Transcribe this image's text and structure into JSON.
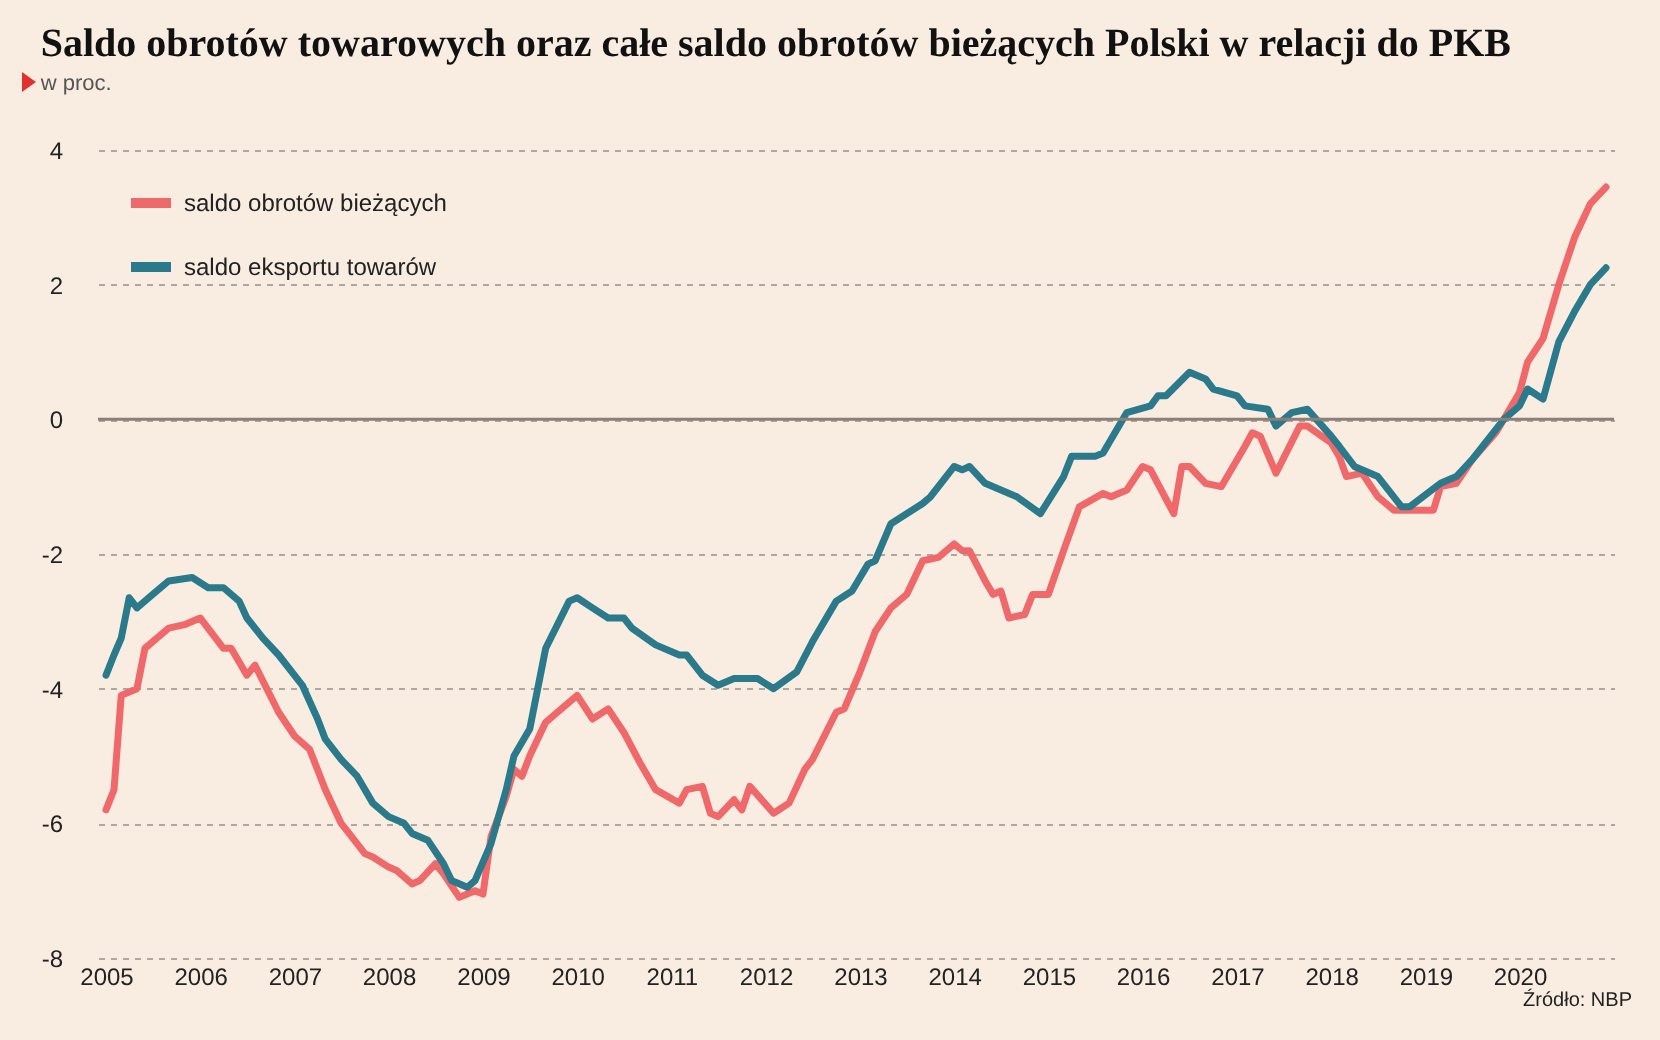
{
  "chart_data": {
    "type": "line",
    "title": "Saldo obrotów towarowych oraz całe saldo obrotów bieżących Polski w relacji do PKB",
    "subtitle": "w proc.",
    "annotations": [
      "Źródło: NBP"
    ],
    "xlim": [
      "2004-12",
      "2021-01"
    ],
    "xticks": [
      "2005",
      "2006",
      "2007",
      "2008",
      "2009",
      "2010",
      "2011",
      "2012",
      "2013",
      "2014",
      "2015",
      "2016",
      "2017",
      "2018",
      "2019",
      "2020"
    ],
    "ylim": [
      -8,
      4
    ],
    "yticks": [
      -8,
      -6,
      -4,
      -2,
      0,
      2,
      4
    ],
    "grid": "y",
    "legend": "top left",
    "ref_lines": [
      {
        "axis": "y",
        "value": 0,
        "color": "#8c7f78"
      }
    ],
    "series": [
      {
        "name": "saldo obrotów bieżących",
        "color": "#f0696a",
        "x": [
          "2005-01",
          "2005-02",
          "2005-03",
          "2005-05",
          "2005-06",
          "2005-09",
          "2005-11",
          "2006-01",
          "2006-04",
          "2006-05",
          "2006-07",
          "2006-08",
          "2006-11",
          "2007-01",
          "2007-03",
          "2007-05",
          "2007-07",
          "2007-08",
          "2007-10",
          "2007-11",
          "2008-01",
          "2008-02",
          "2008-04",
          "2008-05",
          "2008-07",
          "2008-08",
          "2008-10",
          "2008-12",
          "2009-01",
          "2009-02",
          "2009-04",
          "2009-05",
          "2009-06",
          "2009-07",
          "2009-09",
          "2009-10",
          "2010-01",
          "2010-03",
          "2010-05",
          "2010-07",
          "2010-09",
          "2010-11",
          "2011-02",
          "2011-03",
          "2011-05",
          "2011-06",
          "2011-07",
          "2011-09",
          "2011-10",
          "2011-11",
          "2012-02",
          "2012-04",
          "2012-06",
          "2012-07",
          "2012-10",
          "2012-11",
          "2013-01",
          "2013-03",
          "2013-05",
          "2013-07",
          "2013-09",
          "2013-11",
          "2014-01",
          "2014-02",
          "2014-03",
          "2014-05",
          "2014-06",
          "2014-07",
          "2014-08",
          "2014-10",
          "2014-11",
          "2015-01",
          "2015-03",
          "2015-05",
          "2015-08",
          "2015-09",
          "2015-11",
          "2016-01",
          "2016-02",
          "2016-05",
          "2016-06",
          "2016-07",
          "2016-09",
          "2016-11",
          "2017-02",
          "2017-03",
          "2017-04",
          "2017-06",
          "2017-09",
          "2017-10",
          "2018-01",
          "2018-02",
          "2018-03",
          "2018-05",
          "2018-07",
          "2018-09",
          "2019-02",
          "2019-03",
          "2019-05",
          "2019-07",
          "2019-10",
          "2020-01",
          "2020-02",
          "2020-04",
          "2020-06",
          "2020-08",
          "2020-10",
          "2020-12"
        ],
        "values": [
          -5.8,
          -5.5,
          -4.1,
          -4.0,
          -3.4,
          -3.1,
          -3.05,
          -2.95,
          -3.4,
          -3.4,
          -3.8,
          -3.65,
          -4.35,
          -4.7,
          -4.9,
          -5.5,
          -6.0,
          -6.15,
          -6.45,
          -6.5,
          -6.65,
          -6.7,
          -6.9,
          -6.85,
          -6.6,
          -6.75,
          -7.1,
          -7.0,
          -7.05,
          -6.2,
          -5.6,
          -5.2,
          -5.3,
          -5.0,
          -4.5,
          -4.4,
          -4.1,
          -4.45,
          -4.3,
          -4.65,
          -5.1,
          -5.5,
          -5.7,
          -5.5,
          -5.45,
          -5.85,
          -5.9,
          -5.65,
          -5.8,
          -5.45,
          -5.85,
          -5.7,
          -5.2,
          -5.05,
          -4.35,
          -4.3,
          -3.75,
          -3.15,
          -2.8,
          -2.6,
          -2.1,
          -2.05,
          -1.85,
          -1.95,
          -1.95,
          -2.4,
          -2.6,
          -2.55,
          -2.95,
          -2.9,
          -2.6,
          -2.6,
          -1.95,
          -1.3,
          -1.1,
          -1.15,
          -1.05,
          -0.7,
          -0.75,
          -1.4,
          -0.7,
          -0.7,
          -0.95,
          -1.0,
          -0.4,
          -0.2,
          -0.25,
          -0.8,
          -0.1,
          -0.1,
          -0.35,
          -0.55,
          -0.85,
          -0.8,
          -1.15,
          -1.35,
          -1.35,
          -1.0,
          -0.95,
          -0.6,
          -0.2,
          0.4,
          0.85,
          1.2,
          2.0,
          2.7,
          3.2,
          3.45
        ]
      },
      {
        "name": "saldo eksportu towarów",
        "color": "#2a7a8c",
        "x": [
          "2005-01",
          "2005-02",
          "2005-03",
          "2005-04",
          "2005-05",
          "2005-07",
          "2005-09",
          "2005-12",
          "2006-02",
          "2006-04",
          "2006-06",
          "2006-07",
          "2006-09",
          "2006-11",
          "2007-02",
          "2007-04",
          "2007-05",
          "2007-07",
          "2007-09",
          "2007-11",
          "2008-01",
          "2008-03",
          "2008-04",
          "2008-06",
          "2008-08",
          "2008-09",
          "2008-11",
          "2008-12",
          "2009-02",
          "2009-04",
          "2009-05",
          "2009-07",
          "2009-09",
          "2009-12",
          "2010-01",
          "2010-03",
          "2010-05",
          "2010-07",
          "2010-08",
          "2010-11",
          "2011-02",
          "2011-03",
          "2011-05",
          "2011-07",
          "2011-09",
          "2011-12",
          "2012-02",
          "2012-05",
          "2012-07",
          "2012-10",
          "2012-12",
          "2013-02",
          "2013-03",
          "2013-05",
          "2013-09",
          "2013-10",
          "2014-01",
          "2014-02",
          "2014-03",
          "2014-05",
          "2014-09",
          "2014-12",
          "2015-03",
          "2015-04",
          "2015-07",
          "2015-08",
          "2015-11",
          "2016-02",
          "2016-03",
          "2016-04",
          "2016-07",
          "2016-09",
          "2016-10",
          "2017-01",
          "2017-02",
          "2017-05",
          "2017-06",
          "2017-08",
          "2017-10",
          "2018-01",
          "2018-02",
          "2018-04",
          "2018-07",
          "2018-10",
          "2018-11",
          "2019-03",
          "2019-05",
          "2019-07",
          "2019-11",
          "2020-01",
          "2020-02",
          "2020-04",
          "2020-06",
          "2020-08",
          "2020-10",
          "2020-12"
        ],
        "values": [
          -3.8,
          -3.5,
          -3.25,
          -2.65,
          -2.8,
          -2.6,
          -2.4,
          -2.35,
          -2.5,
          -2.5,
          -2.7,
          -2.95,
          -3.25,
          -3.5,
          -3.95,
          -4.45,
          -4.75,
          -5.05,
          -5.3,
          -5.7,
          -5.9,
          -6.0,
          -6.15,
          -6.25,
          -6.6,
          -6.85,
          -6.95,
          -6.85,
          -6.3,
          -5.5,
          -5.0,
          -4.6,
          -3.4,
          -2.7,
          -2.65,
          -2.8,
          -2.95,
          -2.95,
          -3.1,
          -3.35,
          -3.5,
          -3.5,
          -3.8,
          -3.95,
          -3.85,
          -3.85,
          -4.0,
          -3.75,
          -3.3,
          -2.7,
          -2.55,
          -2.15,
          -2.1,
          -1.55,
          -1.25,
          -1.15,
          -0.7,
          -0.75,
          -0.7,
          -0.95,
          -1.15,
          -1.4,
          -0.85,
          -0.55,
          -0.55,
          -0.5,
          0.1,
          0.2,
          0.35,
          0.35,
          0.7,
          0.6,
          0.45,
          0.35,
          0.2,
          0.15,
          -0.1,
          0.1,
          0.15,
          -0.25,
          -0.4,
          -0.7,
          -0.85,
          -1.3,
          -1.3,
          -0.95,
          -0.85,
          -0.6,
          0.0,
          0.2,
          0.45,
          0.3,
          1.15,
          1.6,
          2.0,
          2.25
        ]
      }
    ]
  }
}
